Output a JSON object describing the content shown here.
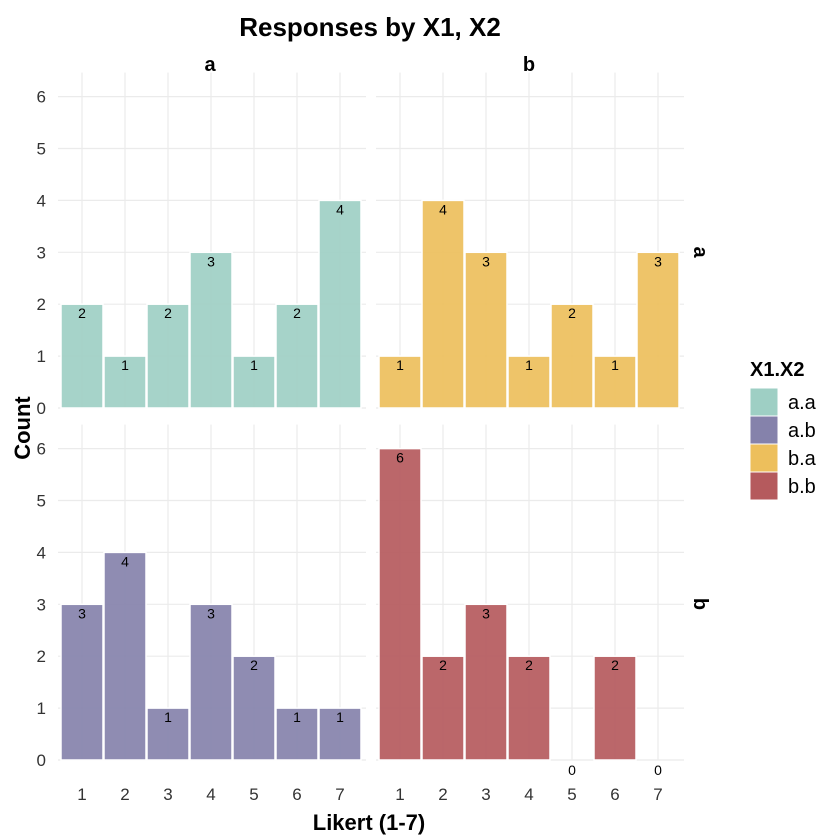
{
  "chart_data": {
    "type": "bar",
    "title": "Responses by X1, X2",
    "xlabel": "Likert (1-7)",
    "ylabel": "Count",
    "categories": [
      "1",
      "2",
      "3",
      "4",
      "5",
      "6",
      "7"
    ],
    "ylim": [
      0,
      6
    ],
    "y_ticks": [
      "0",
      "1",
      "2",
      "3",
      "4",
      "5",
      "6"
    ],
    "col_strips": [
      "a",
      "b"
    ],
    "row_strips": [
      "a",
      "b"
    ],
    "legend": {
      "title": "X1.X2",
      "position": "right",
      "entries": [
        {
          "label": "a.a",
          "color": "#9ecfc4"
        },
        {
          "label": "a.b",
          "color": "#8582ab"
        },
        {
          "label": "b.a",
          "color": "#edbf5c"
        },
        {
          "label": "b.b",
          "color": "#b55a5d"
        }
      ]
    },
    "panels": [
      {
        "row": "a",
        "col": "a",
        "series": "a.a",
        "color": "#9ecfc4",
        "values": [
          2,
          1,
          2,
          3,
          1,
          2,
          4
        ]
      },
      {
        "row": "a",
        "col": "b",
        "series": "b.a",
        "color": "#edbf5c",
        "values": [
          1,
          4,
          3,
          1,
          2,
          1,
          3
        ]
      },
      {
        "row": "b",
        "col": "a",
        "series": "a.b",
        "color": "#8582ab",
        "values": [
          3,
          4,
          1,
          3,
          2,
          1,
          1
        ]
      },
      {
        "row": "b",
        "col": "b",
        "series": "b.b",
        "color": "#b55a5d",
        "values": [
          6,
          2,
          3,
          2,
          0,
          2,
          0
        ]
      }
    ]
  }
}
